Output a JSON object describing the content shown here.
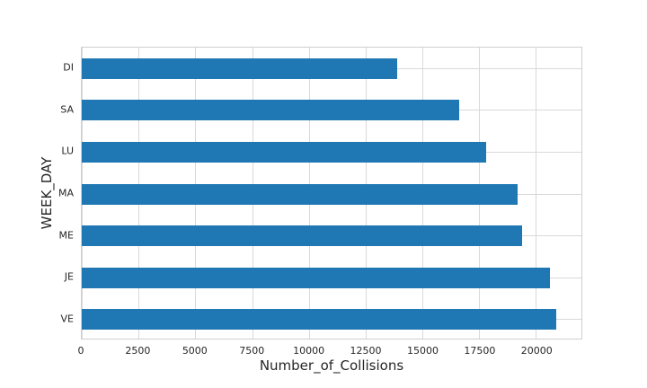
{
  "figure": {
    "background": "#ffffff"
  },
  "chart_data": {
    "type": "bar",
    "orientation": "horizontal",
    "title": "",
    "xlabel": "Number_of_Collisions",
    "ylabel": "WEEK_DAY",
    "categories": [
      "DI",
      "SA",
      "LU",
      "MA",
      "ME",
      "JE",
      "VE"
    ],
    "values": [
      13900,
      16600,
      17800,
      19200,
      19400,
      20600,
      20900
    ],
    "xticks": [
      0,
      2500,
      5000,
      7500,
      10000,
      12500,
      15000,
      17500,
      20000
    ],
    "xtick_labels": [
      "0",
      "2500",
      "5000",
      "7500",
      "10000",
      "12500",
      "15000",
      "17500",
      "20000"
    ],
    "xlim": [
      0,
      22000
    ],
    "grid": true,
    "legend": false,
    "bar_color": "#1f77b4",
    "grid_color": "#d9d9d9",
    "spine_color": "#cfcfcf",
    "text_color": "#262626"
  }
}
